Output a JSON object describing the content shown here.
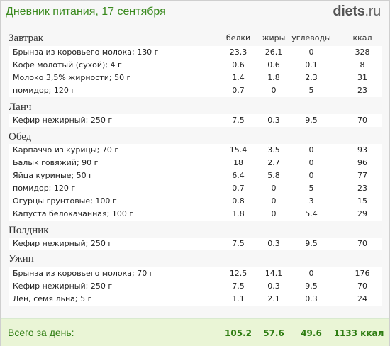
{
  "header": {
    "title": "Дневник питания, 17 сентября",
    "logo_main": "diets",
    "logo_tld": ".ru"
  },
  "columns": {
    "protein": "белки",
    "fat": "жиры",
    "carbs": "углеводы",
    "kcal": "ккал"
  },
  "meals": [
    {
      "name": "Завтрак",
      "items": [
        {
          "name": "Брынза из коровьего молока; 130 г",
          "protein": "23.3",
          "fat": "26.1",
          "carbs": "0",
          "kcal": "328"
        },
        {
          "name": "Кофе молотый (сухой); 4 г",
          "protein": "0.6",
          "fat": "0.6",
          "carbs": "0.1",
          "kcal": "8"
        },
        {
          "name": "Молоко 3,5% жирности; 50 г",
          "protein": "1.4",
          "fat": "1.8",
          "carbs": "2.3",
          "kcal": "31"
        },
        {
          "name": "помидор; 120 г",
          "protein": "0.7",
          "fat": "0",
          "carbs": "5",
          "kcal": "23"
        }
      ]
    },
    {
      "name": "Ланч",
      "items": [
        {
          "name": "Кефир нежирный; 250 г",
          "protein": "7.5",
          "fat": "0.3",
          "carbs": "9.5",
          "kcal": "70"
        }
      ]
    },
    {
      "name": "Обед",
      "items": [
        {
          "name": "Карпаччо из курицы; 70 г",
          "protein": "15.4",
          "fat": "3.5",
          "carbs": "0",
          "kcal": "93"
        },
        {
          "name": "Балык говяжий; 90 г",
          "protein": "18",
          "fat": "2.7",
          "carbs": "0",
          "kcal": "96"
        },
        {
          "name": "Яйца куриные; 50 г",
          "protein": "6.4",
          "fat": "5.8",
          "carbs": "0",
          "kcal": "77"
        },
        {
          "name": "помидор; 120 г",
          "protein": "0.7",
          "fat": "0",
          "carbs": "5",
          "kcal": "23"
        },
        {
          "name": "Огурцы грунтовые; 100 г",
          "protein": "0.8",
          "fat": "0",
          "carbs": "3",
          "kcal": "15"
        },
        {
          "name": "Капуста белокачанная; 100 г",
          "protein": "1.8",
          "fat": "0",
          "carbs": "5.4",
          "kcal": "29"
        }
      ]
    },
    {
      "name": "Полдник",
      "items": [
        {
          "name": "Кефир нежирный; 250 г",
          "protein": "7.5",
          "fat": "0.3",
          "carbs": "9.5",
          "kcal": "70"
        }
      ]
    },
    {
      "name": "Ужин",
      "items": [
        {
          "name": "Брынза из коровьего молока; 70 г",
          "protein": "12.5",
          "fat": "14.1",
          "carbs": "0",
          "kcal": "176"
        },
        {
          "name": "Кефир нежирный; 250 г",
          "protein": "7.5",
          "fat": "0.3",
          "carbs": "9.5",
          "kcal": "70"
        },
        {
          "name": "Лён, семя льна; 5 г",
          "protein": "1.1",
          "fat": "2.1",
          "carbs": "0.3",
          "kcal": "24"
        }
      ]
    }
  ],
  "total": {
    "label": "Всего за день:",
    "protein": "105.2",
    "fat": "57.6",
    "carbs": "49.6",
    "kcal": "1133 ккал"
  },
  "colors": {
    "accent_green": "#3a8a1e",
    "total_bg": "#eaf5d6"
  }
}
